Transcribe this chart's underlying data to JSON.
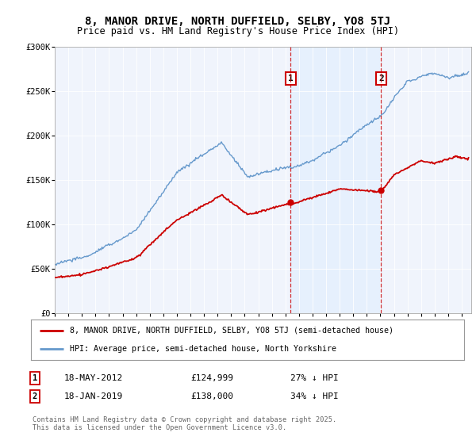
{
  "title_line1": "8, MANOR DRIVE, NORTH DUFFIELD, SELBY, YO8 5TJ",
  "title_line2": "Price paid vs. HM Land Registry's House Price Index (HPI)",
  "background_color": "#ffffff",
  "plot_bg_color": "#f0f4fc",
  "ylim": [
    0,
    300000
  ],
  "yticks": [
    0,
    50000,
    100000,
    150000,
    200000,
    250000,
    300000
  ],
  "ytick_labels": [
    "£0",
    "£50K",
    "£100K",
    "£150K",
    "£200K",
    "£250K",
    "£300K"
  ],
  "xstart_year": 1995,
  "xend_year": 2025,
  "transaction1": {
    "date_label": "18-MAY-2012",
    "x": 2012.38,
    "price": 124999,
    "note": "27% ↓ HPI",
    "label": "1"
  },
  "transaction2": {
    "date_label": "18-JAN-2019",
    "x": 2019.05,
    "price": 138000,
    "note": "34% ↓ HPI",
    "label": "2"
  },
  "hpi_color": "#6699cc",
  "price_color": "#cc0000",
  "shade_color": "#ddeeff",
  "legend_label1": "8, MANOR DRIVE, NORTH DUFFIELD, SELBY, YO8 5TJ (semi-detached house)",
  "legend_label2": "HPI: Average price, semi-detached house, North Yorkshire",
  "footnote": "Contains HM Land Registry data © Crown copyright and database right 2025.\nThis data is licensed under the Open Government Licence v3.0."
}
